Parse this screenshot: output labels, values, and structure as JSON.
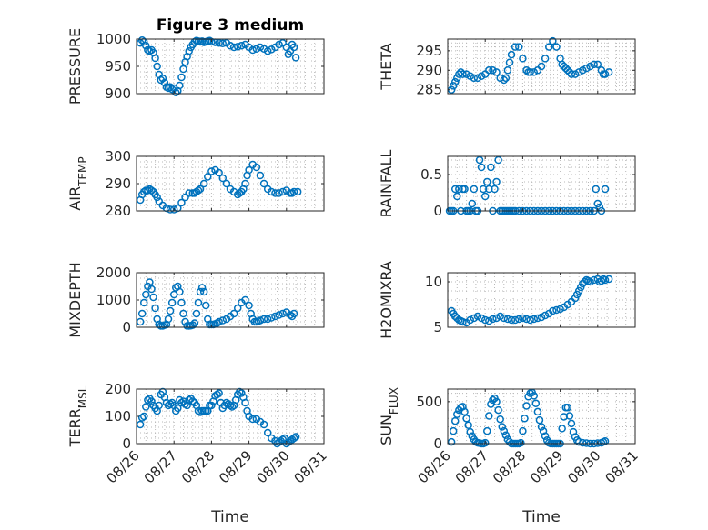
{
  "figure": {
    "title": "Figure 3 medium",
    "marker_color": "#0072BD"
  },
  "chart_data": [
    {
      "type": "scatter",
      "title": "Figure 3 medium",
      "ylabel": "PRESSURE",
      "ylabel_sub": "",
      "ylim": [
        900,
        1000
      ],
      "yticks": [
        900,
        950,
        1000
      ],
      "xlim": [
        0,
        5
      ],
      "xticks": [],
      "xlabel": "",
      "grid": true,
      "x": [
        0.1,
        0.15,
        0.2,
        0.25,
        0.3,
        0.35,
        0.4,
        0.45,
        0.5,
        0.55,
        0.6,
        0.65,
        0.7,
        0.75,
        0.8,
        0.85,
        0.9,
        0.95,
        1.0,
        1.05,
        1.1,
        1.15,
        1.2,
        1.25,
        1.3,
        1.35,
        1.4,
        1.45,
        1.5,
        1.55,
        1.6,
        1.65,
        1.7,
        1.75,
        1.8,
        1.85,
        1.9,
        1.95,
        2.0,
        2.1,
        2.2,
        2.3,
        2.4,
        2.5,
        2.6,
        2.7,
        2.8,
        2.9,
        3.0,
        3.1,
        3.2,
        3.3,
        3.4,
        3.5,
        3.6,
        3.7,
        3.8,
        3.9,
        4.0,
        4.05,
        4.1,
        4.15,
        4.2,
        4.25
      ],
      "y": [
        993,
        998,
        995,
        988,
        980,
        978,
        980,
        975,
        965,
        950,
        935,
        925,
        928,
        920,
        912,
        910,
        912,
        908,
        910,
        902,
        905,
        915,
        930,
        945,
        958,
        968,
        978,
        985,
        990,
        995,
        997,
        996,
        995,
        996,
        994,
        995,
        996,
        997,
        995,
        994,
        993,
        992,
        993,
        988,
        985,
        986,
        988,
        990,
        985,
        980,
        982,
        985,
        982,
        978,
        981,
        985,
        990,
        993,
        985,
        972,
        978,
        990,
        985,
        966
      ]
    },
    {
      "type": "scatter",
      "title": "",
      "ylabel": "THETA",
      "ylabel_sub": "",
      "ylim": [
        284,
        298
      ],
      "yticks": [
        285,
        290,
        295
      ],
      "xlim": [
        0,
        5
      ],
      "xticks": [],
      "xlabel": "",
      "grid": true,
      "x": [
        0.1,
        0.15,
        0.2,
        0.25,
        0.3,
        0.35,
        0.4,
        0.5,
        0.6,
        0.7,
        0.8,
        0.9,
        1.0,
        1.1,
        1.2,
        1.3,
        1.4,
        1.5,
        1.55,
        1.6,
        1.65,
        1.7,
        1.8,
        1.9,
        2.0,
        2.1,
        2.15,
        2.2,
        2.3,
        2.4,
        2.5,
        2.6,
        2.7,
        2.8,
        2.9,
        3.0,
        3.05,
        3.1,
        3.15,
        3.2,
        3.25,
        3.3,
        3.4,
        3.5,
        3.6,
        3.7,
        3.8,
        3.9,
        4.0,
        4.1,
        4.15,
        4.2,
        4.3
      ],
      "y": [
        285,
        286,
        287,
        288,
        289,
        289.5,
        289,
        289,
        288.5,
        288,
        288,
        288.5,
        289,
        290,
        290,
        289.5,
        288,
        287.5,
        288,
        290,
        292,
        294,
        296,
        296,
        293,
        290,
        289.5,
        289.5,
        289.5,
        290,
        291,
        293,
        296,
        297.5,
        296,
        293,
        291.5,
        291,
        290.5,
        290,
        289.5,
        289,
        289,
        289.5,
        290,
        290.5,
        291,
        291.5,
        291.5,
        290,
        289,
        289,
        289.5
      ]
    },
    {
      "type": "scatter",
      "title": "",
      "ylabel": "AIR",
      "ylabel_sub": "TEMP",
      "ylim": [
        280,
        300
      ],
      "yticks": [
        280,
        290,
        300
      ],
      "xlim": [
        0,
        5
      ],
      "xticks": [],
      "xlabel": "",
      "grid": true,
      "x": [
        0.1,
        0.15,
        0.2,
        0.25,
        0.3,
        0.35,
        0.4,
        0.45,
        0.5,
        0.55,
        0.6,
        0.7,
        0.8,
        0.9,
        1.0,
        1.1,
        1.2,
        1.3,
        1.4,
        1.5,
        1.55,
        1.6,
        1.65,
        1.7,
        1.8,
        1.9,
        2.0,
        2.1,
        2.2,
        2.3,
        2.4,
        2.5,
        2.6,
        2.7,
        2.75,
        2.8,
        2.85,
        2.9,
        2.95,
        3.0,
        3.1,
        3.2,
        3.3,
        3.4,
        3.5,
        3.6,
        3.7,
        3.8,
        3.9,
        4.0,
        4.1,
        4.15,
        4.2,
        4.3
      ],
      "y": [
        284,
        286,
        287,
        287.5,
        287.5,
        288,
        287.5,
        287,
        286,
        285,
        283.5,
        282,
        281,
        280.5,
        280.5,
        281,
        283,
        285,
        286.5,
        286.5,
        286.5,
        287,
        287.5,
        288,
        290,
        292.5,
        294.5,
        295,
        294,
        292,
        290,
        288,
        287,
        286,
        286.5,
        287,
        288,
        290,
        293,
        295,
        297,
        296,
        293,
        290,
        288,
        287,
        286.5,
        286.5,
        287,
        287.5,
        286.5,
        286.5,
        287,
        287
      ]
    },
    {
      "type": "scatter",
      "title": "",
      "ylabel": "RAINFALL",
      "ylabel_sub": "",
      "ylim": [
        0,
        0.75
      ],
      "yticks": [
        0,
        0.5
      ],
      "xlim": [
        0,
        5
      ],
      "xticks": [],
      "xlabel": "",
      "grid": true,
      "x": [
        0.05,
        0.1,
        0.15,
        0.2,
        0.25,
        0.3,
        0.35,
        0.4,
        0.45,
        0.5,
        0.55,
        0.6,
        0.65,
        0.7,
        0.75,
        0.8,
        0.85,
        0.9,
        0.95,
        1.0,
        1.05,
        1.1,
        1.15,
        1.2,
        1.25,
        1.3,
        1.35,
        1.4,
        1.45,
        1.5,
        1.55,
        1.6,
        1.65,
        1.7,
        1.75,
        1.8,
        1.9,
        2.0,
        2.1,
        2.2,
        2.3,
        2.4,
        2.5,
        2.6,
        2.7,
        2.8,
        2.9,
        3.0,
        3.1,
        3.2,
        3.3,
        3.4,
        3.5,
        3.6,
        3.7,
        3.8,
        3.9,
        3.95,
        4.0,
        4.05,
        4.1,
        4.2
      ],
      "y": [
        0,
        0,
        0,
        0.3,
        0.2,
        0.3,
        0,
        0.3,
        0.3,
        0,
        0,
        0,
        0.1,
        0.3,
        0,
        0,
        0.7,
        0.6,
        0.3,
        0.2,
        0.4,
        0.3,
        0.6,
        0,
        0.3,
        0.4,
        0.7,
        0,
        0,
        0,
        0,
        0,
        0,
        0,
        0,
        0,
        0,
        0,
        0,
        0,
        0,
        0,
        0,
        0,
        0,
        0,
        0,
        0,
        0,
        0,
        0,
        0,
        0,
        0,
        0,
        0,
        0,
        0.3,
        0.1,
        0.05,
        0,
        0.3
      ]
    },
    {
      "type": "scatter",
      "title": "",
      "ylabel": "MIXDEPTH",
      "ylabel_sub": "",
      "ylim": [
        0,
        2000
      ],
      "yticks": [
        0,
        1000,
        2000
      ],
      "xlim": [
        0,
        5
      ],
      "xticks": [],
      "xlabel": "",
      "grid": true,
      "x": [
        0.1,
        0.15,
        0.2,
        0.25,
        0.3,
        0.35,
        0.4,
        0.45,
        0.5,
        0.55,
        0.6,
        0.65,
        0.7,
        0.75,
        0.8,
        0.85,
        0.9,
        0.95,
        1.0,
        1.05,
        1.1,
        1.15,
        1.2,
        1.25,
        1.3,
        1.35,
        1.4,
        1.45,
        1.5,
        1.55,
        1.6,
        1.65,
        1.7,
        1.75,
        1.8,
        1.85,
        1.9,
        1.95,
        2.0,
        2.05,
        2.1,
        2.15,
        2.2,
        2.3,
        2.4,
        2.5,
        2.6,
        2.7,
        2.8,
        2.9,
        3.0,
        3.05,
        3.1,
        3.15,
        3.2,
        3.25,
        3.3,
        3.4,
        3.5,
        3.6,
        3.7,
        3.8,
        3.9,
        4.0,
        4.1,
        4.15,
        4.2
      ],
      "y": [
        200,
        500,
        900,
        1200,
        1500,
        1650,
        1400,
        1100,
        700,
        300,
        100,
        50,
        50,
        80,
        100,
        300,
        600,
        900,
        1200,
        1450,
        1500,
        1300,
        900,
        500,
        200,
        50,
        50,
        60,
        80,
        150,
        500,
        900,
        1300,
        1450,
        1300,
        800,
        300,
        100,
        100,
        100,
        120,
        150,
        200,
        250,
        300,
        400,
        500,
        700,
        900,
        1000,
        800,
        500,
        300,
        200,
        200,
        220,
        250,
        300,
        300,
        350,
        400,
        450,
        500,
        550,
        450,
        400,
        500
      ]
    },
    {
      "type": "scatter",
      "title": "",
      "ylabel": "H2OMIXRA",
      "ylabel_sub": "",
      "ylim": [
        5,
        11
      ],
      "yticks": [
        5,
        10
      ],
      "xlim": [
        0,
        5
      ],
      "xticks": [],
      "xlabel": "",
      "grid": true,
      "x": [
        0.1,
        0.15,
        0.2,
        0.25,
        0.3,
        0.35,
        0.4,
        0.5,
        0.6,
        0.7,
        0.8,
        0.9,
        1.0,
        1.1,
        1.2,
        1.3,
        1.4,
        1.5,
        1.6,
        1.7,
        1.8,
        1.9,
        2.0,
        2.1,
        2.2,
        2.3,
        2.4,
        2.5,
        2.6,
        2.7,
        2.8,
        2.9,
        3.0,
        3.1,
        3.2,
        3.3,
        3.4,
        3.45,
        3.5,
        3.55,
        3.6,
        3.65,
        3.7,
        3.75,
        3.8,
        3.9,
        4.0,
        4.05,
        4.1,
        4.15,
        4.2,
        4.3
      ],
      "y": [
        6.8,
        6.5,
        6.2,
        6,
        5.8,
        5.7,
        5.6,
        5.5,
        5.8,
        6,
        6.2,
        6,
        5.8,
        5.7,
        5.9,
        6,
        6.2,
        6,
        5.9,
        5.8,
        5.8,
        5.9,
        6,
        5.9,
        5.8,
        5.9,
        6,
        6.1,
        6.3,
        6.5,
        6.8,
        6.9,
        7,
        7.2,
        7.5,
        7.8,
        8.2,
        8.6,
        9,
        9.4,
        9.8,
        10,
        10.2,
        10.1,
        10,
        10.2,
        10.3,
        10,
        10.1,
        10.3,
        10.2,
        10.3
      ]
    },
    {
      "type": "scatter",
      "title": "",
      "ylabel": "TERR",
      "ylabel_sub": "MSL",
      "ylim": [
        0,
        200
      ],
      "yticks": [
        0,
        100,
        200
      ],
      "xlim": [
        0,
        5
      ],
      "xticks": [
        "08/26",
        "08/27",
        "08/28",
        "08/29",
        "08/30",
        "08/31"
      ],
      "xlabel": "Time",
      "grid": true,
      "x": [
        0.1,
        0.15,
        0.2,
        0.25,
        0.3,
        0.35,
        0.4,
        0.45,
        0.5,
        0.55,
        0.6,
        0.65,
        0.7,
        0.75,
        0.8,
        0.85,
        0.9,
        0.95,
        1.0,
        1.05,
        1.1,
        1.15,
        1.2,
        1.25,
        1.3,
        1.35,
        1.4,
        1.45,
        1.5,
        1.55,
        1.6,
        1.65,
        1.7,
        1.75,
        1.8,
        1.85,
        1.9,
        1.95,
        2.0,
        2.05,
        2.1,
        2.15,
        2.2,
        2.25,
        2.3,
        2.35,
        2.4,
        2.45,
        2.5,
        2.55,
        2.6,
        2.65,
        2.7,
        2.75,
        2.8,
        2.85,
        2.9,
        2.95,
        3.0,
        3.1,
        3.2,
        3.3,
        3.4,
        3.5,
        3.6,
        3.7,
        3.75,
        3.8,
        3.85,
        3.9,
        3.95,
        4.0,
        4.05,
        4.1,
        4.15,
        4.2,
        4.25
      ],
      "y": [
        70,
        95,
        100,
        135,
        160,
        165,
        155,
        140,
        130,
        120,
        140,
        180,
        190,
        170,
        150,
        140,
        145,
        150,
        140,
        120,
        130,
        160,
        150,
        155,
        145,
        140,
        160,
        165,
        155,
        150,
        140,
        120,
        115,
        120,
        120,
        120,
        120,
        140,
        140,
        155,
        175,
        180,
        185,
        150,
        130,
        140,
        150,
        145,
        140,
        135,
        140,
        160,
        180,
        190,
        185,
        170,
        150,
        120,
        100,
        90,
        90,
        80,
        70,
        40,
        20,
        10,
        0,
        5,
        10,
        15,
        20,
        0,
        5,
        10,
        15,
        20,
        25
      ]
    },
    {
      "type": "scatter",
      "title": "",
      "ylabel": "SUN",
      "ylabel_sub": "FLUX",
      "ylim": [
        0,
        650
      ],
      "yticks": [
        0,
        500
      ],
      "xlim": [
        0,
        5
      ],
      "xticks": [
        "08/26",
        "08/27",
        "08/28",
        "08/29",
        "08/30",
        "08/31"
      ],
      "xlabel": "Time",
      "grid": true,
      "x": [
        0.1,
        0.15,
        0.2,
        0.25,
        0.3,
        0.35,
        0.4,
        0.45,
        0.5,
        0.55,
        0.6,
        0.65,
        0.7,
        0.75,
        0.8,
        0.85,
        0.9,
        0.95,
        1.0,
        1.05,
        1.1,
        1.15,
        1.2,
        1.25,
        1.3,
        1.35,
        1.4,
        1.45,
        1.5,
        1.55,
        1.6,
        1.65,
        1.7,
        1.75,
        1.8,
        1.85,
        1.9,
        1.95,
        2.0,
        2.05,
        2.1,
        2.15,
        2.2,
        2.25,
        2.3,
        2.35,
        2.4,
        2.45,
        2.5,
        2.55,
        2.6,
        2.65,
        2.7,
        2.75,
        2.8,
        2.85,
        2.9,
        2.95,
        3.0,
        3.05,
        3.1,
        3.15,
        3.2,
        3.25,
        3.3,
        3.35,
        3.4,
        3.45,
        3.5,
        3.6,
        3.7,
        3.8,
        3.9,
        4.0,
        4.1,
        4.15,
        4.2
      ],
      "y": [
        20,
        150,
        270,
        350,
        400,
        430,
        440,
        380,
        300,
        220,
        140,
        90,
        50,
        20,
        10,
        5,
        0,
        0,
        10,
        150,
        330,
        470,
        520,
        540,
        500,
        400,
        290,
        200,
        150,
        100,
        50,
        20,
        0,
        0,
        0,
        0,
        0,
        10,
        150,
        300,
        450,
        560,
        600,
        610,
        570,
        480,
        380,
        280,
        200,
        150,
        90,
        40,
        10,
        0,
        0,
        0,
        0,
        0,
        0,
        180,
        320,
        430,
        430,
        330,
        240,
        140,
        80,
        40,
        20,
        10,
        5,
        0,
        0,
        5,
        10,
        20,
        30
      ]
    }
  ]
}
